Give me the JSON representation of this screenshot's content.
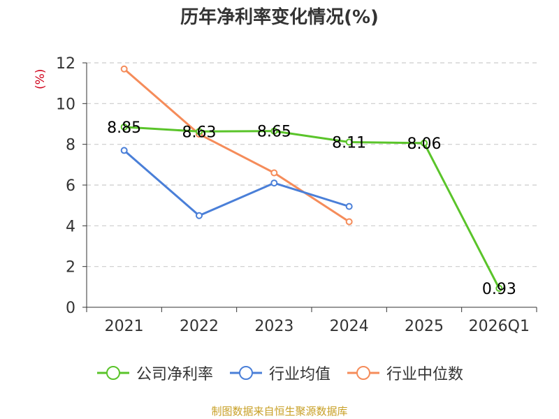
{
  "chart_data": {
    "type": "line",
    "title": "历年净利率变化情况(%)",
    "y_unit": "(%)",
    "categories": [
      "2021",
      "2022",
      "2023",
      "2024",
      "2025",
      "2026Q1"
    ],
    "ylim": [
      0,
      12
    ],
    "yticks": [
      0,
      2,
      4,
      6,
      8,
      10,
      12
    ],
    "grid": true,
    "legend_position": "bottom",
    "series": [
      {
        "name": "公司净利率",
        "color": "#5ac42a",
        "values": [
          8.85,
          8.63,
          8.65,
          8.11,
          8.06,
          0.93
        ],
        "labels": [
          "8.85",
          "8.63",
          "8.65",
          "8.11",
          "8.06",
          "0.93"
        ]
      },
      {
        "name": "行业均值",
        "color": "#4a7fd8",
        "values": [
          7.7,
          4.5,
          6.1,
          4.95,
          null,
          null
        ]
      },
      {
        "name": "行业中位数",
        "color": "#f58c5a",
        "values": [
          11.7,
          8.5,
          6.6,
          4.2,
          null,
          null
        ]
      }
    ]
  },
  "source": "制图数据来自恒生聚源数据库"
}
